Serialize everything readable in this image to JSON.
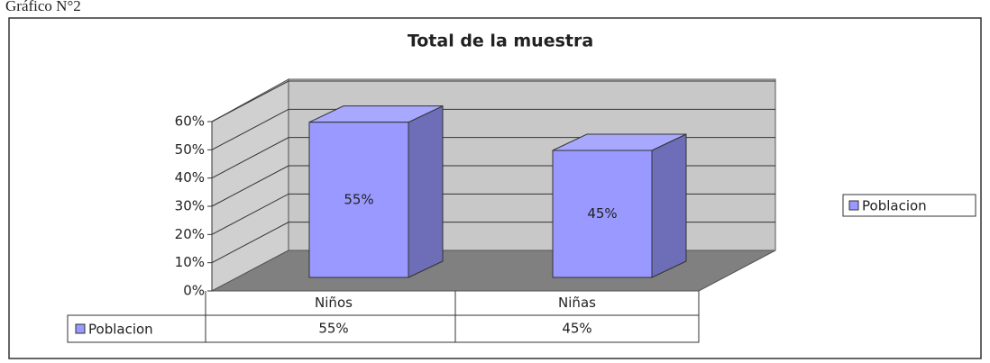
{
  "caption": "Gráfico N°2",
  "chart_data": {
    "type": "bar3d",
    "title": "Total de la muestra",
    "categories": [
      "Niños",
      "Niñas"
    ],
    "series": [
      {
        "name": "Poblacion",
        "color": "#9999ff",
        "values": [
          55,
          45
        ],
        "value_labels": [
          "55%",
          "45%"
        ]
      }
    ],
    "ylim": [
      0,
      60
    ],
    "yticks": [
      {
        "value": 0,
        "label": "0%"
      },
      {
        "value": 10,
        "label": "10%"
      },
      {
        "value": 20,
        "label": "20%"
      },
      {
        "value": 30,
        "label": "30%"
      },
      {
        "value": 40,
        "label": "40%"
      },
      {
        "value": 50,
        "label": "50%"
      },
      {
        "value": 60,
        "label": "60%"
      }
    ],
    "grid": true,
    "legend": "right",
    "data_table": true
  }
}
